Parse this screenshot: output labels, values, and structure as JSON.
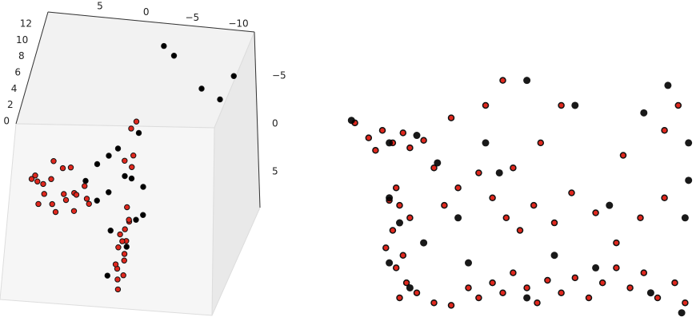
{
  "chart_data": [
    {
      "type": "scatter3d",
      "xlim": [
        -12,
        8
      ],
      "ylim": [
        -8,
        8
      ],
      "zlim": [
        0,
        12
      ],
      "xticks": [
        5,
        0,
        {
          "value": -5,
          "label": "−5"
        },
        {
          "value": -10,
          "label": "−10"
        }
      ],
      "yticks": [
        {
          "value": -5,
          "label": "−5"
        },
        0,
        5
      ],
      "zticks": [
        0,
        2,
        4,
        6,
        8,
        10,
        12
      ],
      "series": [
        {
          "color": "#e0281e",
          "x": [
            10,
            9.5,
            9,
            8.5,
            8,
            7.5,
            7,
            6.5,
            6,
            5.5,
            5,
            4.5,
            4,
            3.5,
            9,
            8,
            10,
            7,
            6,
            5,
            -0.5,
            -1,
            -0.8,
            -1.2,
            -0.6,
            -1.5,
            -1,
            -1.3,
            -1.6,
            -0.9,
            -1.4,
            -0.7,
            -1.1,
            -0.4,
            -1.8,
            -0.5,
            -0.8,
            -0.3,
            -1,
            0.2
          ],
          "y": [
            0,
            1,
            0.5,
            2,
            1,
            2.5,
            0,
            1.5,
            2.5,
            1,
            2,
            0.5,
            1.5,
            2.5,
            2.5,
            0,
            1.5,
            3,
            0.5,
            3,
            2,
            3,
            4,
            5,
            6,
            7,
            8,
            9,
            10,
            5.5,
            6.5,
            7.5,
            3.5,
            4.5,
            8.5,
            0,
            0.5,
            -0.5,
            0,
            0.3
          ],
          "z": [
            0.5,
            1,
            0.2,
            0.8,
            1.5,
            0.3,
            1.8,
            0.5,
            1,
            0.2,
            1.2,
            0.6,
            0.3,
            0.9,
            0.1,
            2.5,
            1.8,
            0,
            2.6,
            0.4,
            0.5,
            0,
            0.2,
            0,
            0.3,
            0,
            0.1,
            0,
            0,
            0.5,
            0.2,
            0,
            0.8,
            0.1,
            0,
            3,
            5,
            7,
            8.5,
            4
          ]
        },
        {
          "color": "#000000",
          "x": [
            -1.9,
            -3,
            -6,
            -8,
            -9.5,
            0,
            1,
            2,
            1.5,
            -1,
            -2,
            -1.5,
            -0.2,
            3,
            2.5,
            -2.5,
            4,
            -1,
            -2,
            0.5
          ],
          "y": [
            -8,
            -8,
            -8,
            -8,
            -8,
            1,
            0,
            0,
            2,
            2,
            1,
            6,
            9,
            1,
            3,
            3,
            2,
            -1,
            4,
            5
          ],
          "z": [
            8.5,
            7.5,
            4,
            3,
            6,
            3,
            5,
            4,
            2,
            4,
            2,
            0.5,
            0.3,
            4,
            2,
            1,
            3,
            6,
            1.5,
            1
          ]
        }
      ]
    },
    {
      "type": "scatter",
      "xlim": [
        0,
        100
      ],
      "ylim": [
        0,
        100
      ],
      "series": [
        {
          "color": "#e0281e",
          "x": [
            2,
            6,
            8,
            10,
            13,
            16,
            18,
            22,
            25,
            14,
            12,
            15,
            18,
            13,
            11,
            16,
            14,
            17,
            20,
            15,
            25,
            30,
            35,
            38,
            42,
            45,
            48,
            52,
            55,
            58,
            62,
            66,
            70,
            74,
            78,
            82,
            86,
            90,
            95,
            98,
            28,
            32,
            38,
            42,
            46,
            50,
            54,
            60,
            65,
            72,
            78,
            85,
            92,
            48,
            56,
            62,
            30,
            40,
            45,
            80,
            92,
            96
          ],
          "y": [
            78,
            72,
            67,
            75,
            70,
            74,
            68,
            71,
            60,
            52,
            47,
            45,
            40,
            35,
            28,
            25,
            20,
            14,
            10,
            8,
            6,
            5,
            12,
            8,
            14,
            10,
            18,
            12,
            6,
            15,
            10,
            16,
            8,
            14,
            20,
            12,
            18,
            8,
            14,
            6,
            45,
            52,
            58,
            48,
            40,
            35,
            45,
            38,
            50,
            42,
            30,
            40,
            48,
            60,
            70,
            85,
            80,
            85,
            95,
            65,
            75,
            85
          ]
        },
        {
          "color": "#000000",
          "x": [
            1,
            12,
            20,
            26,
            12,
            15,
            12,
            18,
            32,
            44,
            52,
            60,
            72,
            88,
            97,
            99,
            99,
            93,
            52,
            86,
            40,
            66,
            35,
            22,
            76,
            98
          ],
          "y": [
            79,
            70,
            73,
            62,
            48,
            38,
            22,
            12,
            40,
            58,
            8,
            25,
            20,
            10,
            2,
            55,
            70,
            93,
            95,
            82,
            70,
            85,
            22,
            30,
            45,
            40
          ]
        }
      ]
    }
  ]
}
